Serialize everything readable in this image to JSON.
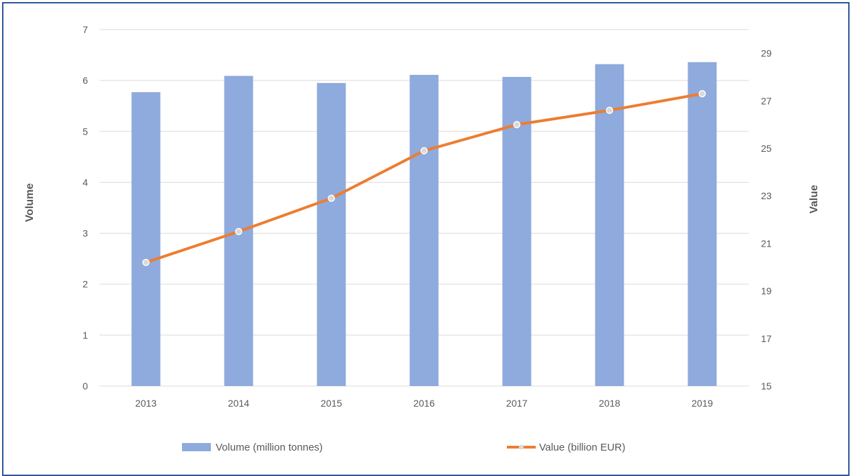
{
  "chart_data": {
    "type": "bar",
    "categories": [
      "2013",
      "2014",
      "2015",
      "2016",
      "2017",
      "2018",
      "2019"
    ],
    "series": [
      {
        "name": "Volume (million tonnes)",
        "type": "bar",
        "axis": "left",
        "color": "#8faadc",
        "values": [
          5.77,
          6.09,
          5.95,
          6.11,
          6.07,
          6.32,
          6.36
        ]
      },
      {
        "name": "Value (billion EUR)",
        "type": "line",
        "axis": "right",
        "color": "#ed7d31",
        "marker_color": "#d9d9d9",
        "values": [
          20.2,
          21.5,
          22.9,
          24.9,
          26.0,
          26.6,
          27.3
        ]
      }
    ],
    "ylabel": "Volume",
    "y2label": "Value",
    "ylim": [
      0,
      7
    ],
    "y2lim": [
      15,
      30
    ],
    "yticks": [
      "0",
      "1",
      "2",
      "3",
      "4",
      "5",
      "6",
      "7"
    ],
    "y2ticks": [
      "15",
      "17",
      "19",
      "21",
      "23",
      "25",
      "27",
      "29"
    ],
    "grid": true,
    "legend_position": "bottom",
    "gridline_color": "#d9d9d9"
  }
}
